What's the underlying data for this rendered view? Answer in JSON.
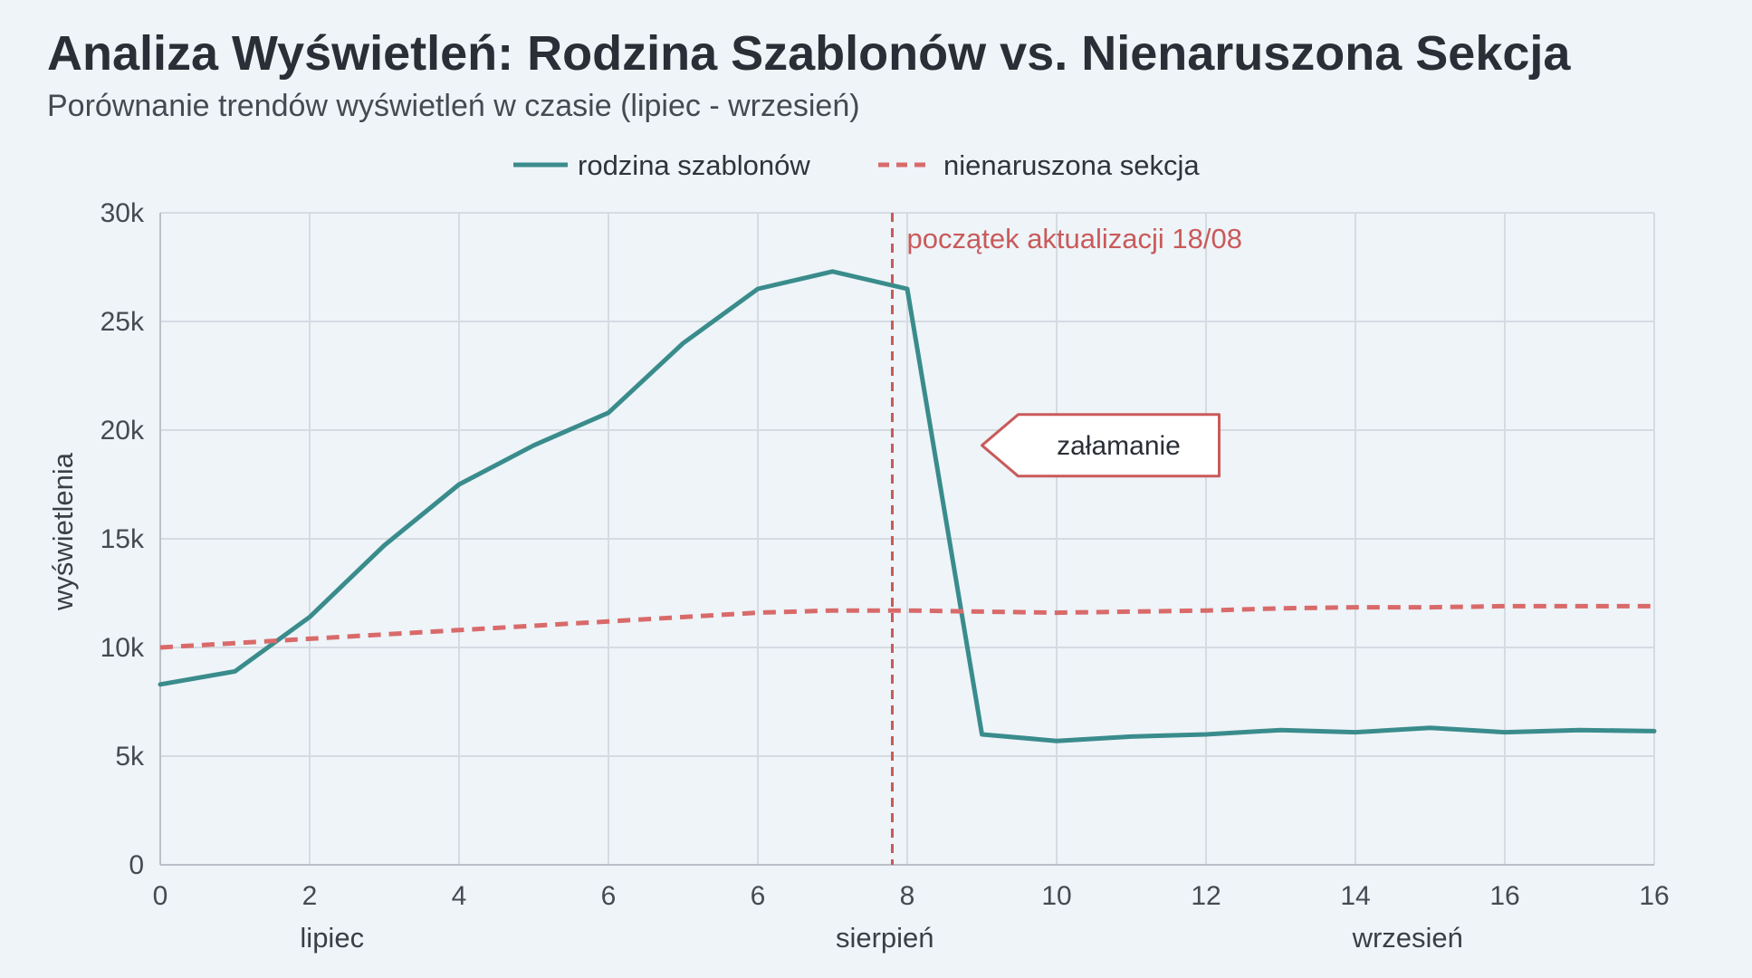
{
  "header": {
    "title": "Analiza Wyświetleń: Rodzina Szablonów vs. Nienaruszona Sekcja",
    "subtitle": "Porównanie trendów wyświetleń w czasie (lipiec - wrzesień)"
  },
  "colors": {
    "series_1": "#3a8c8c",
    "series_2": "#d96a6a",
    "annotation": "#c95a5a",
    "grid": "#d5dbe2",
    "background": "#eef4f8"
  },
  "chart_data": {
    "type": "line",
    "title": "Analiza Wyświetleń: Rodzina Szablonów vs. Nienaruszona Sekcja",
    "subtitle": "Porównanie trendów wyświetleń w czasie (lipiec - wrzesień)",
    "xlabel": "",
    "ylabel": "wyświetlenia",
    "ylim": [
      0,
      30000
    ],
    "grid": true,
    "legend": "top-center",
    "x_tick_labels": [
      "0",
      "2",
      "4",
      "6",
      "6",
      "8",
      "10",
      "12",
      "14",
      "16",
      "16"
    ],
    "y_tick_labels": [
      "0",
      "5k",
      "10k",
      "15k",
      "20k",
      "25k",
      "30k"
    ],
    "y_ticks": [
      0,
      5000,
      10000,
      15000,
      20000,
      25000,
      30000
    ],
    "month_labels": [
      {
        "label": "lipiec",
        "x": 2.3
      },
      {
        "label": "sierpień",
        "x": 9.7
      },
      {
        "label": "wrzesień",
        "x": 16.7
      }
    ],
    "series": [
      {
        "name": "rodzina szablonów",
        "style": "solid",
        "x": [
          0,
          1,
          2,
          3,
          4,
          5,
          6,
          7,
          8,
          9,
          10,
          11,
          12,
          13,
          14,
          15,
          16,
          17,
          18,
          19,
          20
        ],
        "values": [
          8300,
          8900,
          11400,
          14700,
          17500,
          19300,
          20800,
          24000,
          26500,
          27300,
          26500,
          6000,
          5700,
          5900,
          6000,
          6200,
          6100,
          6300,
          6100,
          6200,
          6150
        ]
      },
      {
        "name": "nienaruszona sekcja",
        "style": "dashed",
        "x": [
          0,
          1,
          2,
          3,
          4,
          5,
          6,
          7,
          8,
          9,
          10,
          11,
          12,
          13,
          14,
          15,
          16,
          17,
          18,
          19,
          20
        ],
        "values": [
          10000,
          10200,
          10400,
          10600,
          10800,
          11000,
          11200,
          11400,
          11600,
          11700,
          11700,
          11650,
          11600,
          11650,
          11700,
          11800,
          11850,
          11850,
          11900,
          11900,
          11900
        ]
      }
    ],
    "annotations": [
      {
        "type": "vertical_line",
        "x": 9.8,
        "label": "początek aktualizacji 18/08"
      },
      {
        "type": "callout",
        "x": 11,
        "y": 19300,
        "label": "załamanie"
      }
    ]
  }
}
